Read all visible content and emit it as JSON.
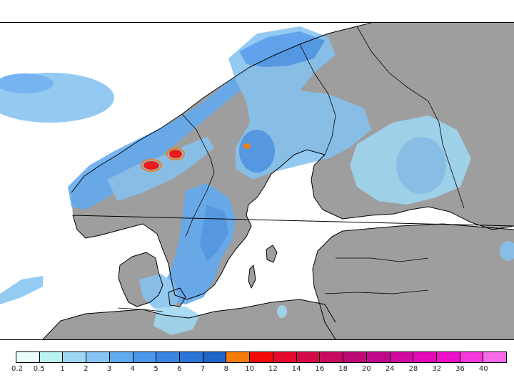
{
  "map": {
    "land_color": "#9e9e9e",
    "sea_color": "#ffffff",
    "border_color": "#000000"
  },
  "legend": {
    "colors": [
      "#e9fdfd",
      "#b7f3f3",
      "#9fd8f2",
      "#86c3f1",
      "#62aaf0",
      "#4b97ea",
      "#3a85e3",
      "#2b73d7",
      "#1d63c8",
      "#f57b0a",
      "#f50a0a",
      "#e50a2e",
      "#d70a48",
      "#c80a60",
      "#bd0a75",
      "#c00a8a",
      "#d20aa0",
      "#e10ab5",
      "#ee10c8",
      "#f638db",
      "#f86ae8"
    ],
    "ticks": [
      "0.2",
      "0.5",
      "1",
      "2",
      "3",
      "4",
      "5",
      "6",
      "7",
      "8",
      "10",
      "12",
      "14",
      "16",
      "18",
      "20",
      "24",
      "28",
      "32",
      "36",
      "40"
    ]
  }
}
